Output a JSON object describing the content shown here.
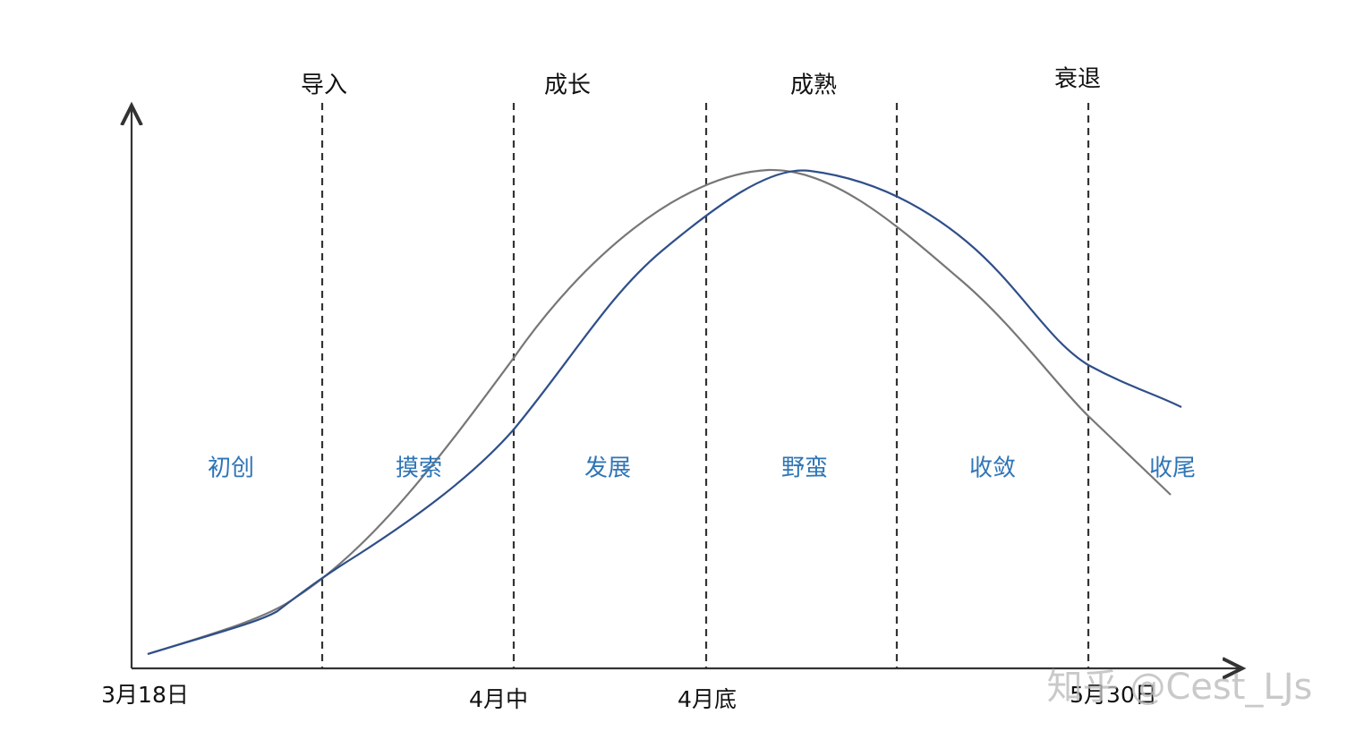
{
  "stages": [
    "导入",
    "成长",
    "成熟",
    "衰退"
  ],
  "phases": [
    "初创",
    "摸索",
    "发展",
    "野蛮",
    "收敛",
    "收尾"
  ],
  "dates": [
    "3月18日",
    "4月中",
    "4月底",
    "5月30日"
  ],
  "watermark": "知乎 @Cest_LJs"
}
